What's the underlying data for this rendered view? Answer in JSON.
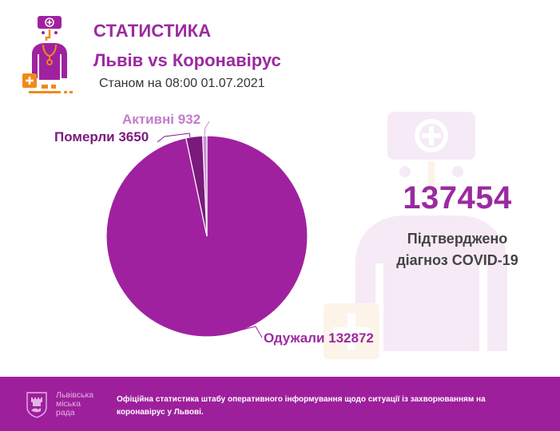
{
  "header": {
    "title": "СТАТИСТИКА",
    "subtitle": "Львів vs Коронавірус",
    "as_of": "Станом на 08:00 01.07.2021",
    "logo_icon": "doctor-icon"
  },
  "summary": {
    "total": "137454",
    "caption_line1": "Підтверджено",
    "caption_line2": "діагноз COVID-19"
  },
  "labels": {
    "active": "Активні 932",
    "dead": "Померли 3650",
    "recovered": "Одужали 132872"
  },
  "footer": {
    "org_line1": "Львівська",
    "org_line2": "міська",
    "org_line3": "рада",
    "note": "Офіційна статистика штабу оперативного інформування щодо ситуації із захворюванням на коронавірус у Львові.",
    "crest_icon": "lviv-crest-icon"
  },
  "colors": {
    "accent": "#9b2aa0",
    "recovered": "#a021a0",
    "dead": "#7a1a7c",
    "active": "#c98fd0",
    "footer_bg": "#9e1f9c",
    "text_dark": "#333333"
  },
  "chart_data": {
    "type": "pie",
    "title": "Львів vs Коронавірус",
    "categories": [
      "Одужали",
      "Померли",
      "Активні"
    ],
    "values": [
      132872,
      3650,
      932
    ],
    "total": 137454,
    "colors": [
      "#a021a0",
      "#7a1a7c",
      "#c98fd0"
    ],
    "start_angle_deg": 0,
    "direction": "clockwise",
    "legend": "none (callout labels)"
  }
}
